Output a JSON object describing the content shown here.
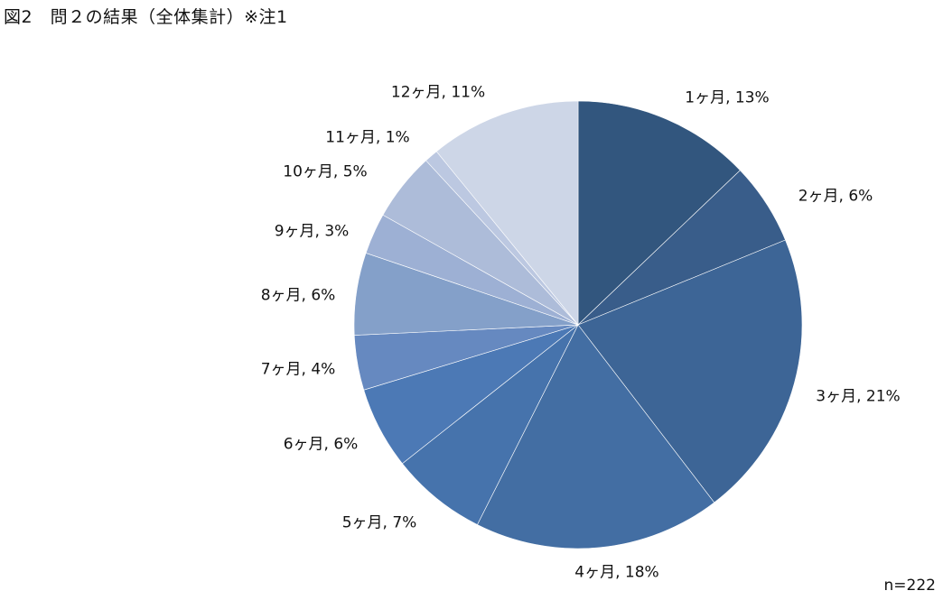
{
  "chart_data": {
    "type": "pie",
    "title": "図2　問２の結果（全体集計）※注1",
    "note": "n=222",
    "categories": [
      "1ヶ月",
      "2ヶ月",
      "3ヶ月",
      "4ヶ月",
      "5ヶ月",
      "6ヶ月",
      "7ヶ月",
      "8ヶ月",
      "9ヶ月",
      "10ヶ月",
      "11ヶ月",
      "12ヶ月"
    ],
    "values": [
      13,
      6,
      21,
      18,
      7,
      6,
      4,
      6,
      3,
      5,
      1,
      11
    ],
    "unit": "%",
    "start_angle": "12 o'clock",
    "direction": "clockwise",
    "colors": [
      "#32567e",
      "#395d8a",
      "#3d6596",
      "#436ea3",
      "#4673ac",
      "#4c79b5",
      "#6689c0",
      "#84a0c9",
      "#9db0d4",
      "#adbcd9",
      "#bcc8e1",
      "#cdd6e7"
    ],
    "legend": "none",
    "data_labels": "category, percent"
  }
}
